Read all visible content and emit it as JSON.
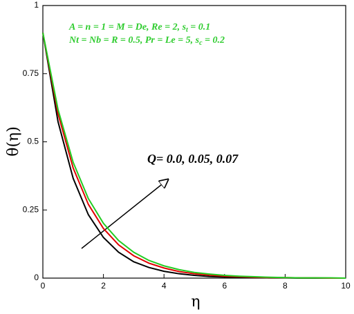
{
  "chart_data": {
    "type": "line",
    "x": [
      0,
      0.5,
      1,
      1.5,
      2,
      2.5,
      3,
      3.5,
      4,
      4.5,
      5,
      5.5,
      6,
      6.5,
      7,
      7.5,
      8,
      8.5,
      9,
      9.5,
      10
    ],
    "series": [
      {
        "color": "#000000",
        "values": [
          0.9,
          0.574,
          0.366,
          0.233,
          0.149,
          0.095,
          0.06,
          0.039,
          0.025,
          0.016,
          0.01,
          0.006,
          0.004,
          0.003,
          0.002,
          0.001,
          0.001,
          0,
          0,
          0,
          0
        ]
      },
      {
        "color": "#e00000",
        "values": [
          0.9,
          0.603,
          0.404,
          0.271,
          0.182,
          0.122,
          0.082,
          0.055,
          0.037,
          0.024,
          0.016,
          0.011,
          0.007,
          0.005,
          0.003,
          0.002,
          0.002,
          0.001,
          0.001,
          0,
          0
        ]
      },
      {
        "color": "#22cc22",
        "values": [
          0.9,
          0.619,
          0.425,
          0.292,
          0.201,
          0.138,
          0.095,
          0.065,
          0.045,
          0.031,
          0.021,
          0.015,
          0.01,
          0.007,
          0.005,
          0.003,
          0.002,
          0.001,
          0.001,
          0.001,
          0
        ]
      }
    ],
    "xlabel": "η",
    "ylabel": "θ(η)",
    "xlim": [
      0,
      10
    ],
    "ylim": [
      0,
      1
    ],
    "xticks": [
      0,
      2,
      4,
      6,
      8,
      10
    ],
    "yticks": [
      0,
      0.25,
      0.5,
      0.75,
      1
    ],
    "annotations": [
      [
        {
          "text": "A = n = 1 = M = De, Re = 2, s"
        },
        {
          "sub": "t"
        },
        {
          "text": " = 0.1"
        }
      ],
      [
        {
          "text": "Nt = Nb = R = 0.5, Pr = Le = 5, s"
        },
        {
          "sub": "c"
        },
        {
          "text": " = 0.2"
        }
      ]
    ],
    "arrow_label": "Q= 0.0, 0.05, 0.07"
  }
}
